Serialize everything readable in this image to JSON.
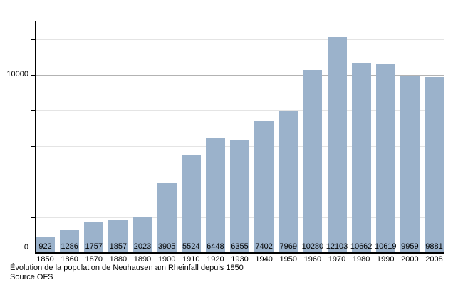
{
  "chart_data": {
    "type": "bar",
    "categories": [
      "1850",
      "1860",
      "1870",
      "1880",
      "1890",
      "1900",
      "1910",
      "1920",
      "1930",
      "1940",
      "1950",
      "1960",
      "1970",
      "1980",
      "1990",
      "2000",
      "2008"
    ],
    "values": [
      922,
      1286,
      1757,
      1857,
      2023,
      3905,
      5524,
      6448,
      6355,
      7402,
      7969,
      10280,
      12103,
      10662,
      10619,
      9959,
      9881
    ],
    "title": "",
    "xlabel": "",
    "ylabel": "",
    "ylim": [
      0,
      13040
    ],
    "ytick_interval": 2000,
    "yticks": [
      2000,
      4000,
      6000,
      8000,
      10000,
      12000
    ],
    "ytick_labels_shown": {
      "zero": "0",
      "main": "10000"
    },
    "grid": true,
    "emphasized_gridline_value": 10000,
    "legend": "none",
    "bar_color": "#9BB2CB",
    "gridline_color": "#e4e4e4",
    "major_gridline_color": "#b3b3b3",
    "axis_color": "#000000",
    "caption_line1": "Évolution de la population de Neuhausen am Rheinfall depuis 1850",
    "caption_line2": "Source OFS"
  }
}
